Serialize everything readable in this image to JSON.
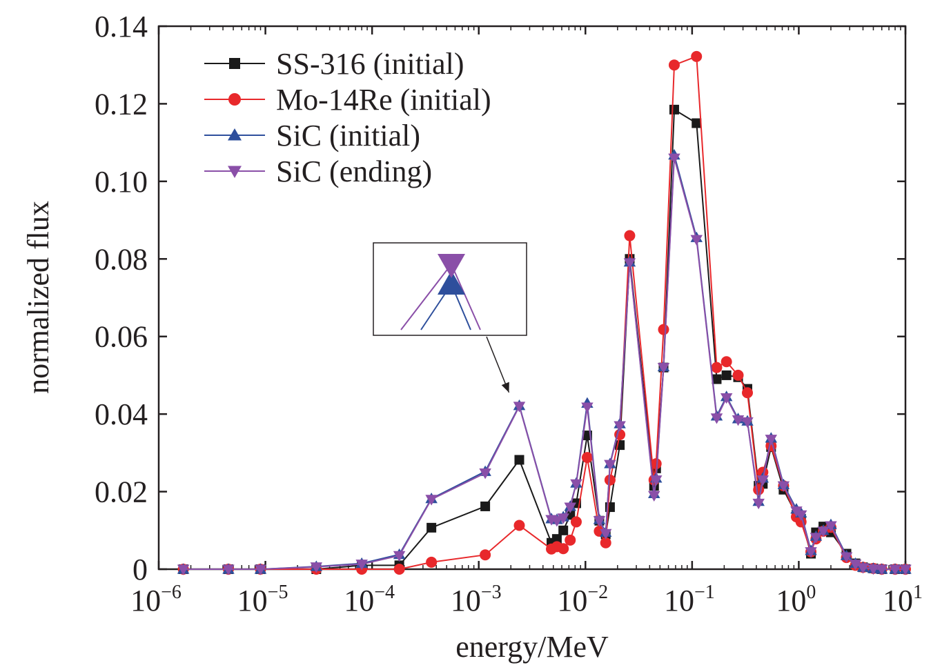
{
  "chart_data": {
    "type": "line",
    "xlabel": "energy/MeV",
    "ylabel": "normalized flux",
    "xscale": "log",
    "xlim": [
      1e-06,
      10
    ],
    "ylim": [
      0,
      0.14
    ],
    "yticks": [
      "0",
      "0.02",
      "0.04",
      "0.06",
      "0.08",
      "0.10",
      "0.12",
      "0.14"
    ],
    "xticks": [
      {
        "base": "10",
        "exp": "−6"
      },
      {
        "base": "10",
        "exp": "−5"
      },
      {
        "base": "10",
        "exp": "−4"
      },
      {
        "base": "10",
        "exp": "−3"
      },
      {
        "base": "10",
        "exp": "−2"
      },
      {
        "base": "10",
        "exp": "−1"
      },
      {
        "base": "10",
        "exp": "0"
      },
      {
        "base": "10",
        "exp": "1"
      }
    ],
    "grid": false,
    "legend_position": "top-left",
    "inset": {
      "description_marks": [
        "SiC (ending)",
        "SiC (initial)"
      ],
      "points_to_x": 0.0024,
      "points_to_y": 0.042
    },
    "series": [
      {
        "name": "SS-316 (initial)",
        "color": "#1a1a1a",
        "marker": "square",
        "x": [
          1.7e-06,
          4.5e-06,
          9e-06,
          3e-05,
          8e-05,
          0.00018,
          0.00036,
          0.00115,
          0.0024,
          0.0048,
          0.0054,
          0.0062,
          0.0072,
          0.0082,
          0.0104,
          0.0135,
          0.0155,
          0.017,
          0.021,
          0.026,
          0.044,
          0.046,
          0.054,
          0.068,
          0.11,
          0.17,
          0.21,
          0.27,
          0.33,
          0.42,
          0.46,
          0.55,
          0.72,
          0.95,
          1.05,
          1.3,
          1.45,
          1.7,
          2.0,
          2.8,
          3.4,
          4.0,
          5.0,
          6.0,
          8.0,
          10.0
        ],
        "y": [
          0,
          0,
          0,
          0,
          0.001,
          0.001,
          0.0107,
          0.0162,
          0.0282,
          0.0068,
          0.0078,
          0.01,
          0.014,
          0.017,
          0.0345,
          0.0125,
          0.009,
          0.016,
          0.032,
          0.08,
          0.0215,
          0.026,
          0.052,
          0.1185,
          0.115,
          0.049,
          0.05,
          0.0495,
          0.0465,
          0.0215,
          0.022,
          0.0315,
          0.0205,
          0.014,
          0.013,
          0.004,
          0.0095,
          0.011,
          0.0095,
          0.004,
          0.0015,
          0.0005,
          0.0002,
          0,
          0,
          0
        ]
      },
      {
        "name": "Mo-14Re (initial)",
        "color": "#e8282b",
        "marker": "circle",
        "x": [
          1.7e-06,
          4.5e-06,
          9e-06,
          3e-05,
          8e-05,
          0.00018,
          0.00036,
          0.00115,
          0.0024,
          0.0048,
          0.0054,
          0.0062,
          0.0072,
          0.0082,
          0.0104,
          0.0135,
          0.0155,
          0.017,
          0.021,
          0.026,
          0.044,
          0.046,
          0.054,
          0.068,
          0.11,
          0.17,
          0.21,
          0.27,
          0.33,
          0.42,
          0.46,
          0.55,
          0.72,
          0.95,
          1.05,
          1.3,
          1.45,
          1.7,
          2.0,
          2.8,
          3.4,
          4.0,
          5.0,
          6.0,
          8.0,
          10.0
        ],
        "y": [
          0,
          0,
          0,
          0,
          0,
          0,
          0.0018,
          0.0037,
          0.0113,
          0.0052,
          0.0058,
          0.0053,
          0.0075,
          0.0122,
          0.0288,
          0.0098,
          0.0068,
          0.023,
          0.0347,
          0.086,
          0.023,
          0.0272,
          0.0618,
          0.13,
          0.1322,
          0.052,
          0.0535,
          0.05,
          0.0455,
          0.0205,
          0.025,
          0.0318,
          0.0215,
          0.0135,
          0.0122,
          0.0045,
          0.0078,
          0.0098,
          0.0108,
          0.003,
          0.001,
          0.0005,
          0.0002,
          0,
          0,
          0
        ]
      },
      {
        "name": "SiC (initial)",
        "color": "#2e4f9c",
        "marker": "triangle-up",
        "x": [
          1.7e-06,
          4.5e-06,
          9e-06,
          3e-05,
          8e-05,
          0.00018,
          0.00036,
          0.00115,
          0.0024,
          0.0048,
          0.0054,
          0.0062,
          0.0072,
          0.0082,
          0.0104,
          0.0135,
          0.0155,
          0.017,
          0.021,
          0.026,
          0.044,
          0.046,
          0.054,
          0.068,
          0.11,
          0.17,
          0.21,
          0.27,
          0.33,
          0.42,
          0.46,
          0.55,
          0.72,
          0.95,
          1.05,
          1.3,
          1.45,
          1.7,
          2.0,
          2.8,
          3.4,
          4.0,
          5.0,
          6.0,
          8.0,
          10.0
        ],
        "y": [
          0,
          0,
          0,
          0.0007,
          0.0015,
          0.0038,
          0.0182,
          0.0252,
          0.0422,
          0.013,
          0.0128,
          0.0135,
          0.0162,
          0.0222,
          0.0428,
          0.0128,
          0.0095,
          0.0272,
          0.0375,
          0.0792,
          0.0195,
          0.0235,
          0.0522,
          0.1068,
          0.0855,
          0.0395,
          0.0445,
          0.0388,
          0.0382,
          0.0175,
          0.0235,
          0.0338,
          0.0218,
          0.0155,
          0.0145,
          0.0048,
          0.0085,
          0.01,
          0.0115,
          0.0035,
          0.0015,
          0.0005,
          0.0002,
          0,
          0,
          0
        ]
      },
      {
        "name": "SiC (ending)",
        "color": "#8a4fa8",
        "marker": "triangle-down",
        "x": [
          1.7e-06,
          4.5e-06,
          9e-06,
          3e-05,
          8e-05,
          0.00018,
          0.00036,
          0.00115,
          0.0024,
          0.0048,
          0.0054,
          0.0062,
          0.0072,
          0.0082,
          0.0104,
          0.0135,
          0.0155,
          0.017,
          0.021,
          0.026,
          0.044,
          0.046,
          0.054,
          0.068,
          0.11,
          0.17,
          0.21,
          0.27,
          0.33,
          0.42,
          0.46,
          0.55,
          0.72,
          0.95,
          1.05,
          1.3,
          1.45,
          1.7,
          2.0,
          2.8,
          3.4,
          4.0,
          5.0,
          6.0,
          8.0,
          10.0
        ],
        "y": [
          0,
          0,
          0,
          0.0006,
          0.0013,
          0.0035,
          0.018,
          0.0248,
          0.042,
          0.0128,
          0.0125,
          0.0132,
          0.016,
          0.022,
          0.0418,
          0.0125,
          0.0092,
          0.027,
          0.037,
          0.079,
          0.019,
          0.023,
          0.052,
          0.106,
          0.085,
          0.039,
          0.0442,
          0.0385,
          0.038,
          0.017,
          0.023,
          0.0335,
          0.0215,
          0.015,
          0.014,
          0.0045,
          0.0082,
          0.0098,
          0.0112,
          0.0032,
          0.0013,
          0.0004,
          0.0001,
          0,
          0,
          0
        ]
      }
    ]
  }
}
